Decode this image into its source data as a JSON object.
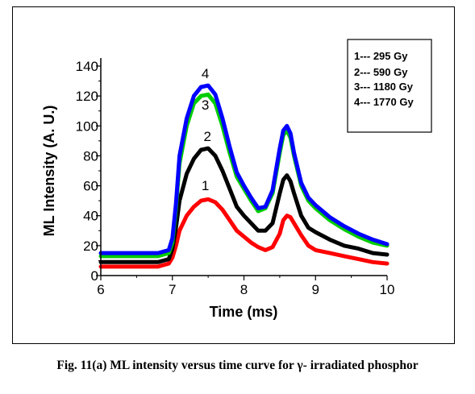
{
  "caption": "Fig. 11(a) ML intensity versus time curve for γ- irradiated phosphor",
  "chart_data": {
    "type": "line",
    "xlabel": "Time (ms)",
    "ylabel": "ML Intensity (A. U.)",
    "xlim": [
      6,
      10
    ],
    "ylim": [
      0,
      140
    ],
    "xticks": [
      6,
      7,
      8,
      9,
      10
    ],
    "yticks": [
      0,
      20,
      40,
      60,
      80,
      100,
      120,
      140
    ],
    "grid": false,
    "legend_position": "top-right",
    "legend": [
      "1--- 295 Gy",
      "2--- 590 Gy",
      "3--- 1180 Gy",
      "4--- 1770 Gy"
    ],
    "series": [
      {
        "label": "1",
        "color": "#ff0000",
        "x": [
          6.0,
          6.3,
          6.6,
          6.8,
          6.95,
          7.0,
          7.05,
          7.1,
          7.2,
          7.3,
          7.4,
          7.5,
          7.6,
          7.7,
          7.8,
          7.9,
          8.0,
          8.1,
          8.2,
          8.3,
          8.4,
          8.5,
          8.55,
          8.6,
          8.65,
          8.7,
          8.8,
          8.9,
          9.0,
          9.2,
          9.4,
          9.6,
          9.8,
          10.0
        ],
        "y": [
          6,
          6,
          6,
          6,
          8,
          12,
          20,
          30,
          40,
          46,
          50,
          51,
          49,
          44,
          37,
          30,
          26,
          22,
          19,
          17,
          19,
          28,
          37,
          40,
          39,
          35,
          27,
          20,
          17,
          15,
          13,
          11,
          9,
          8
        ]
      },
      {
        "label": "2",
        "color": "#000000",
        "x": [
          6.0,
          6.3,
          6.6,
          6.8,
          6.95,
          7.0,
          7.05,
          7.1,
          7.2,
          7.3,
          7.4,
          7.5,
          7.6,
          7.7,
          7.8,
          7.9,
          8.0,
          8.1,
          8.2,
          8.3,
          8.4,
          8.5,
          8.55,
          8.6,
          8.65,
          8.7,
          8.8,
          8.9,
          9.0,
          9.2,
          9.4,
          9.6,
          9.8,
          10.0
        ],
        "y": [
          9,
          9,
          9,
          9,
          11,
          18,
          32,
          50,
          68,
          78,
          84,
          85,
          80,
          70,
          58,
          46,
          40,
          35,
          30,
          30,
          35,
          55,
          64,
          67,
          63,
          55,
          40,
          32,
          29,
          24,
          20,
          18,
          15,
          14
        ]
      },
      {
        "label": "3",
        "color": "#00cc00",
        "x": [
          6.0,
          6.3,
          6.6,
          6.8,
          6.95,
          7.0,
          7.05,
          7.1,
          7.2,
          7.3,
          7.4,
          7.5,
          7.6,
          7.7,
          7.8,
          7.9,
          8.0,
          8.1,
          8.2,
          8.3,
          8.4,
          8.5,
          8.55,
          8.6,
          8.65,
          8.7,
          8.8,
          8.9,
          9.0,
          9.2,
          9.4,
          9.6,
          9.8,
          10.0
        ],
        "y": [
          13,
          13,
          13,
          13,
          15,
          22,
          45,
          75,
          100,
          115,
          120,
          121,
          115,
          100,
          82,
          66,
          58,
          50,
          43,
          45,
          55,
          82,
          94,
          97,
          92,
          80,
          60,
          50,
          45,
          37,
          31,
          26,
          22,
          20
        ]
      },
      {
        "label": "4",
        "color": "#0000ff",
        "x": [
          6.0,
          6.3,
          6.6,
          6.8,
          6.95,
          7.0,
          7.05,
          7.1,
          7.2,
          7.3,
          7.4,
          7.5,
          7.6,
          7.7,
          7.8,
          7.9,
          8.0,
          8.1,
          8.2,
          8.3,
          8.4,
          8.5,
          8.55,
          8.6,
          8.65,
          8.7,
          8.8,
          8.9,
          9.0,
          9.2,
          9.4,
          9.6,
          9.8,
          10.0
        ],
        "y": [
          15,
          15,
          15,
          15,
          17,
          25,
          48,
          80,
          105,
          120,
          126,
          127,
          121,
          105,
          86,
          69,
          60,
          52,
          45,
          46,
          57,
          85,
          97,
          100,
          95,
          82,
          62,
          52,
          47,
          39,
          33,
          28,
          24,
          21
        ]
      }
    ],
    "annotations": [
      {
        "text": "1",
        "x": 7.46,
        "y": 57
      },
      {
        "text": "2",
        "x": 7.49,
        "y": 90
      },
      {
        "text": "3",
        "x": 7.46,
        "y": 111
      },
      {
        "text": "4",
        "x": 7.46,
        "y": 132
      }
    ]
  }
}
